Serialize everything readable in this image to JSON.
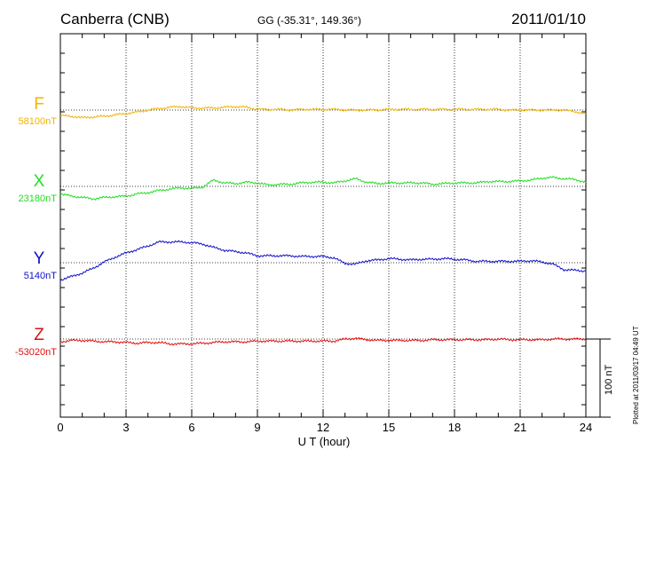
{
  "header": {
    "station": "Canberra (CNB)",
    "coords": "GG (-35.31°, 149.36°)",
    "date": "2011/01/10"
  },
  "components": [
    {
      "letter": "F",
      "baseline": "58100nT",
      "color": "#f0b400"
    },
    {
      "letter": "X",
      "baseline": "23180nT",
      "color": "#22dd22"
    },
    {
      "letter": "Y",
      "baseline": "5140nT",
      "color": "#1010cc"
    },
    {
      "letter": "Z",
      "baseline": "-53020nT",
      "color": "#dd1111"
    }
  ],
  "x_ticks": [
    "0",
    "3",
    "6",
    "9",
    "12",
    "15",
    "18",
    "21",
    "24"
  ],
  "xlabel": "U T (hour)",
  "scale_label": "100 nT",
  "plotted_note": "Plotted at 2011/03/17 04:49 UT",
  "chart_data": {
    "type": "line",
    "title": "Canberra (CNB)",
    "subtitle": "GG (-35.31°, 149.36°)",
    "xlabel": "U T (hour)",
    "ylabel": "",
    "xlim": [
      0,
      24
    ],
    "grid": true,
    "x": [
      0,
      0.5,
      1,
      1.5,
      2,
      2.5,
      3,
      3.5,
      4,
      4.5,
      5,
      5.5,
      6,
      6.5,
      7,
      7.5,
      8,
      8.5,
      9,
      9.5,
      10,
      10.5,
      11,
      11.5,
      12,
      12.5,
      13,
      13.5,
      14,
      14.5,
      15,
      15.5,
      16,
      16.5,
      17,
      17.5,
      18,
      18.5,
      19,
      19.5,
      20,
      20.5,
      21,
      21.5,
      22,
      22.5,
      23,
      23.5,
      24
    ],
    "series": [
      {
        "name": "F",
        "baseline": "58100nT",
        "color": "#f0b400",
        "values": [
          -8,
          -9,
          -11,
          -10,
          -9,
          -7,
          -5,
          -3,
          0,
          2,
          4,
          5,
          3,
          3,
          3,
          4,
          5,
          4,
          1,
          1,
          1,
          0,
          1,
          1,
          1,
          1,
          0,
          0,
          0,
          0,
          1,
          1,
          1,
          1,
          1,
          1,
          1,
          1,
          1,
          1,
          1,
          0,
          0,
          0,
          0,
          0,
          0,
          -2,
          -6
        ]
      },
      {
        "name": "X",
        "baseline": "23180nT",
        "color": "#22dd22",
        "values": [
          -11,
          -14,
          -16,
          -18,
          -16,
          -15,
          -14,
          -11,
          -9,
          -6,
          -4,
          -2,
          -3,
          -1,
          9,
          5,
          4,
          6,
          5,
          2,
          3,
          3,
          5,
          6,
          6,
          5,
          8,
          11,
          6,
          4,
          5,
          5,
          5,
          5,
          3,
          4,
          5,
          5,
          5,
          7,
          7,
          7,
          8,
          9,
          12,
          13,
          11,
          10,
          6
        ]
      },
      {
        "name": "Y",
        "baseline": "5140nT",
        "color": "#1010cc",
        "values": [
          -25,
          -20,
          -15,
          -8,
          1,
          8,
          14,
          19,
          24,
          30,
          30,
          30,
          29,
          27,
          22,
          18,
          16,
          14,
          10,
          10,
          10,
          10,
          9,
          9,
          9,
          7,
          -1,
          -2,
          3,
          4,
          6,
          5,
          4,
          5,
          5,
          6,
          5,
          4,
          2,
          2,
          2,
          2,
          2,
          3,
          1,
          -2,
          -10,
          -11,
          -12
        ]
      },
      {
        "name": "Z",
        "baseline": "-53020nT",
        "color": "#dd1111",
        "values": [
          -4,
          -2,
          -2,
          -3,
          -4,
          -4,
          -5,
          -6,
          -5,
          -5,
          -7,
          -7,
          -7,
          -6,
          -5,
          -4,
          -4,
          -4,
          -3,
          -3,
          -3,
          -3,
          -3,
          -3,
          -3,
          -3,
          0,
          1,
          -1,
          -2,
          -2,
          -2,
          -2,
          -2,
          -1,
          -1,
          -1,
          -1,
          -1,
          -1,
          0,
          -1,
          -1,
          -1,
          -1,
          0,
          0,
          0,
          0
        ]
      }
    ]
  }
}
